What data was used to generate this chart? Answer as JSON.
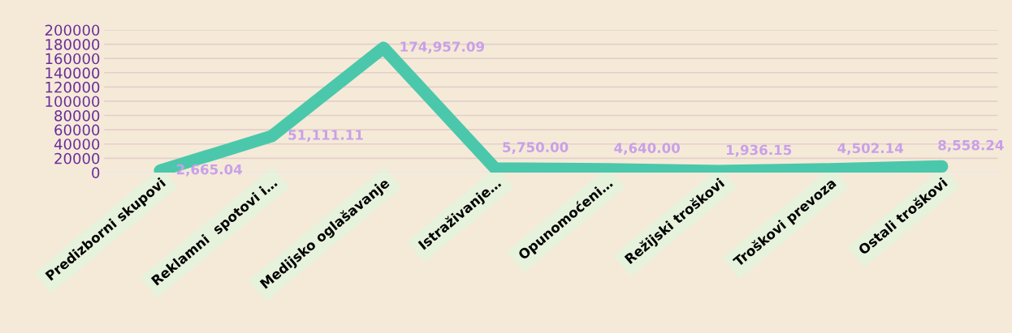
{
  "chart_data": {
    "type": "line",
    "categories": [
      "Predizborni skupovi",
      "Reklamni  spotovi i…",
      "Medijsko oglašavanje",
      "Istraživanje…",
      "Opunomoćeni…",
      "Režijski troškovi",
      "Troškovi prevoza",
      "Ostali troškovi"
    ],
    "series": [
      {
        "color": "#4bc8ab",
        "values": [
          2665.04,
          51111.11,
          174957.09,
          5750.0,
          4640.0,
          1936.15,
          4502.14,
          8558.24
        ],
        "value_labels": [
          "2,665.04",
          "51,111.11",
          "174,957.09",
          "5,750.00",
          "4,640.00",
          "1,936.15",
          "4,502.14",
          "8,558.24"
        ]
      }
    ],
    "ylim": [
      0,
      200000
    ],
    "yticks": [
      0,
      20000,
      40000,
      60000,
      80000,
      100000,
      120000,
      140000,
      160000,
      180000,
      200000
    ],
    "grid": "y",
    "legend": false,
    "line_style": "solid"
  }
}
